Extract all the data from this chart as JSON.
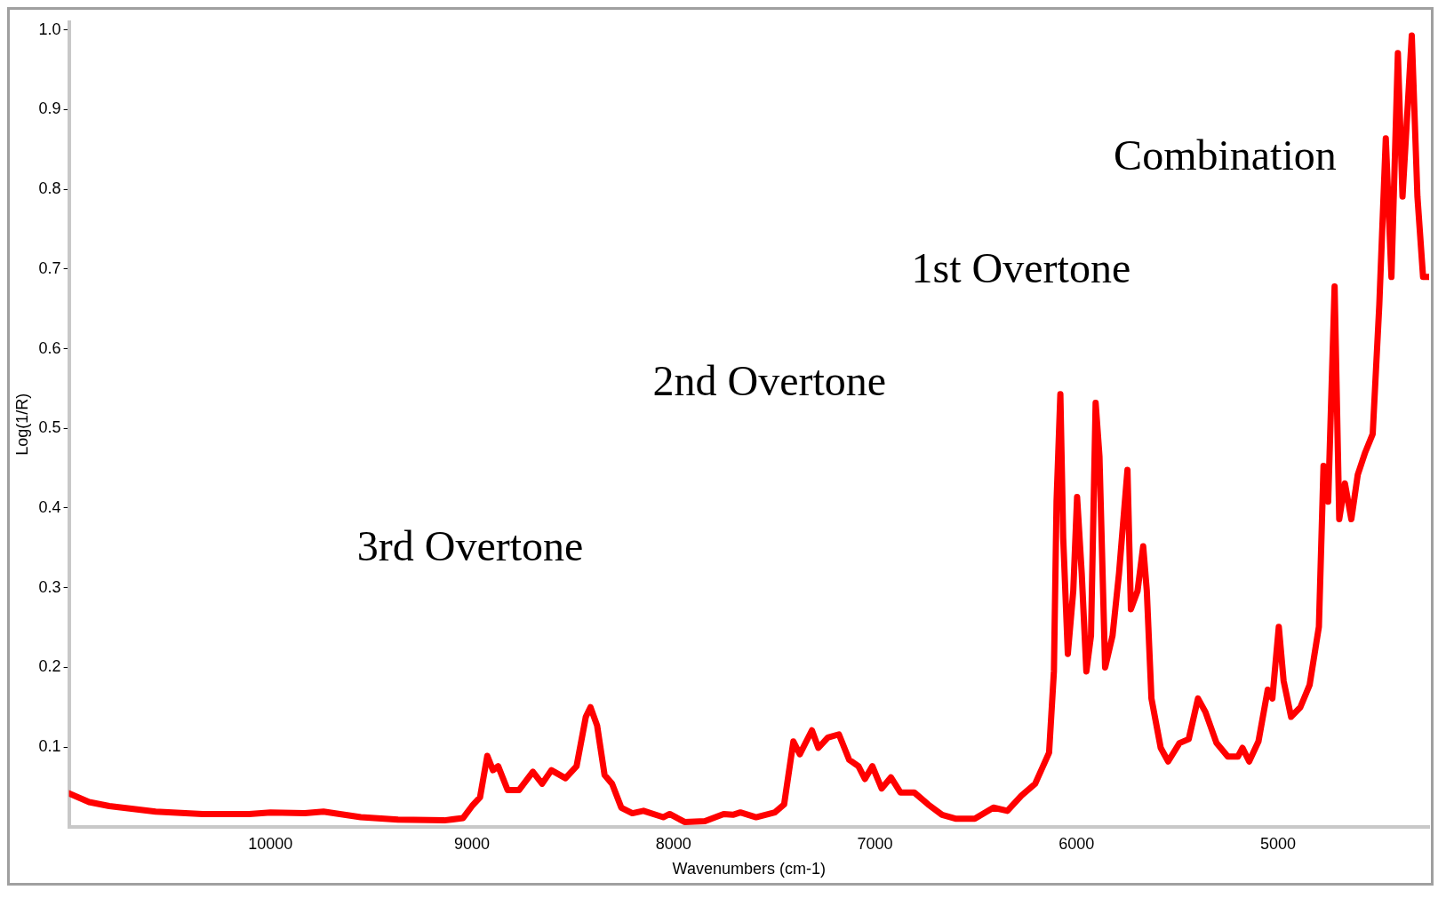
{
  "chart_data": {
    "type": "line",
    "xlabel": "Wavenumbers (cm-1)",
    "ylabel": "Log(1/R)",
    "color": "#ff0000",
    "grid": false,
    "legend": false,
    "marker": "none",
    "line_style": "solid",
    "xlim": [
      11000,
      4250
    ],
    "xticks": [
      10000,
      9000,
      8000,
      7000,
      6000,
      5000
    ],
    "ylim": [
      0,
      1.01
    ],
    "yticks": [
      0.1,
      0.2,
      0.3,
      0.4,
      0.5,
      0.6,
      0.7,
      0.8,
      0.9,
      {
        "value": 1,
        "label": "1.0"
      }
    ],
    "x": [
      11000,
      10900,
      10800,
      10570,
      10337,
      10106,
      10000,
      9830,
      9737,
      9552,
      9367,
      9137,
      9044,
      9000,
      8960,
      8924,
      8896,
      8870,
      8823,
      8767,
      8698,
      8652,
      8606,
      8536,
      8481,
      8435,
      8412,
      8379,
      8342,
      8305,
      8259,
      8204,
      8149,
      8051,
      8019,
      7945,
      7844,
      7751,
      7705,
      7668,
      7590,
      7497,
      7451,
      7405,
      7373,
      7313,
      7281,
      7234,
      7179,
      7128,
      7082,
      7050,
      7013,
      6967,
      6921,
      6874,
      6805,
      6736,
      6667,
      6597,
      6505,
      6412,
      6343,
      6274,
      6205,
      6136,
      6112,
      6099,
      6080,
      6066,
      6043,
      6016,
      5997,
      5974,
      5951,
      5928,
      5905,
      5886,
      5858,
      5821,
      5789,
      5747,
      5730,
      5697,
      5669,
      5651,
      5628,
      5582,
      5545,
      5489,
      5443,
      5397,
      5360,
      5305,
      5249,
      5199,
      5176,
      5143,
      5097,
      5051,
      5028,
      4996,
      4972,
      4935,
      4889,
      4843,
      4797,
      4774,
      4751,
      4719,
      4696,
      4668,
      4636,
      4604,
      4567,
      4530,
      4497,
      4465,
      4437,
      4405,
      4382,
      4336,
      4308,
      4280,
      4252
    ],
    "values": [
      0.042,
      0.031,
      0.026,
      0.019,
      0.016,
      0.016,
      0.018,
      0.017,
      0.019,
      0.012,
      0.009,
      0.008,
      0.011,
      0.026,
      0.037,
      0.089,
      0.071,
      0.076,
      0.046,
      0.046,
      0.069,
      0.054,
      0.071,
      0.061,
      0.076,
      0.138,
      0.15,
      0.127,
      0.065,
      0.054,
      0.024,
      0.017,
      0.02,
      0.012,
      0.016,
      0.006,
      0.007,
      0.016,
      0.015,
      0.018,
      0.012,
      0.018,
      0.028,
      0.107,
      0.091,
      0.121,
      0.099,
      0.112,
      0.116,
      0.084,
      0.076,
      0.06,
      0.076,
      0.048,
      0.062,
      0.043,
      0.043,
      0.028,
      0.015,
      0.01,
      0.01,
      0.024,
      0.02,
      0.039,
      0.054,
      0.093,
      0.195,
      0.408,
      0.543,
      0.363,
      0.217,
      0.296,
      0.414,
      0.318,
      0.195,
      0.24,
      0.532,
      0.465,
      0.2,
      0.24,
      0.318,
      0.448,
      0.273,
      0.296,
      0.352,
      0.296,
      0.161,
      0.099,
      0.082,
      0.105,
      0.11,
      0.161,
      0.144,
      0.105,
      0.088,
      0.088,
      0.099,
      0.082,
      0.107,
      0.172,
      0.161,
      0.251,
      0.183,
      0.138,
      0.15,
      0.178,
      0.251,
      0.453,
      0.408,
      0.678,
      0.386,
      0.431,
      0.386,
      0.442,
      0.47,
      0.493,
      0.656,
      0.864,
      0.69,
      0.971,
      0.791,
      0.993,
      0.791,
      0.69,
      0.69
    ],
    "annotations": [
      "3rd Overtone",
      "2nd Overtone",
      "1st Overtone",
      "Combination"
    ]
  }
}
